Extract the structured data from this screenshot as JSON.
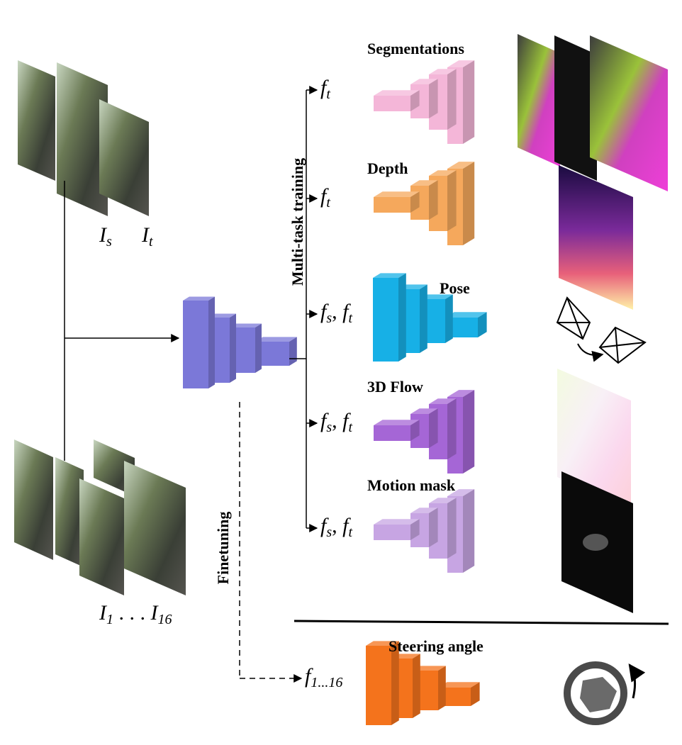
{
  "labels": {
    "segmentations": "Segmentations",
    "depth": "Depth",
    "pose": "Pose",
    "flow3d": "3D Flow",
    "motion_mask": "Motion mask",
    "steering_angle": "Steering angle",
    "multi_task_training": "Multi-task training",
    "finetuning": "Finetuning"
  },
  "math": {
    "is_base": "I",
    "is_sub": "s",
    "it_base": "I",
    "it_sub": "t",
    "i1": "I",
    "i1_sub": "1",
    "dots": " . . . ",
    "i16": "I",
    "i16_sub": "16",
    "ft_base": "f",
    "ft_sub": "t",
    "fsft_a": "f",
    "fsft_a_sub": "s",
    "fsft_sep": ", ",
    "fsft_b": "f",
    "fsft_b_sub": "t",
    "f116_base": "f",
    "f116_sub": "1...16"
  },
  "colors": {
    "encoder": "#7b78d8",
    "segmentation_head": "#f4b6d8",
    "depth_head": "#f5a85c",
    "pose_head": "#17b0e6",
    "flow_head": "#a566d6",
    "mask_head": "#c7a5e3",
    "steering_head": "#f4731c"
  }
}
